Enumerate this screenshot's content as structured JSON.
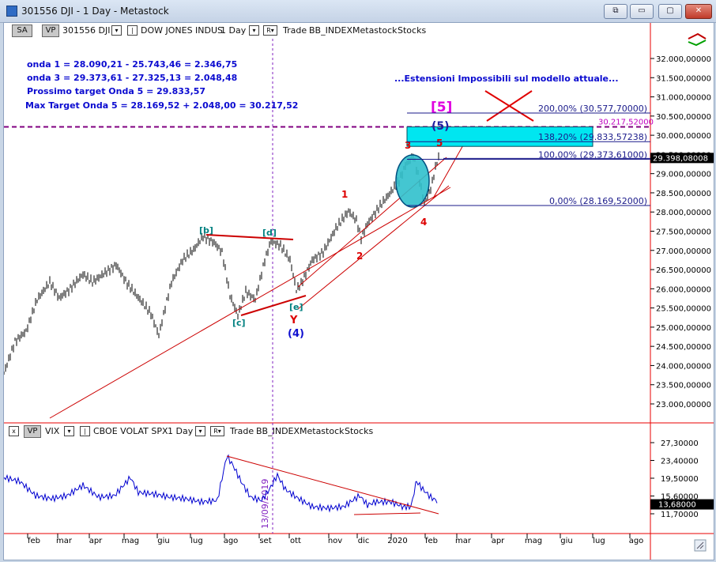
{
  "window": {
    "title": "301556 DJI - 1 Day - Metastock",
    "buttons": [
      "⧉",
      "▭",
      "▢",
      "✕"
    ]
  },
  "top_toolbar": {
    "sa": "SA",
    "vp": "VP",
    "symbol": "301556 DJI",
    "name": "DOW JONES INDUS",
    "period": "1 Day",
    "r": "R",
    "trade": "Trade",
    "bb": "BB_INDEX",
    "metastock": "Metastock",
    "stocks": "Stocks"
  },
  "bottom_toolbar": {
    "x": "x",
    "vp": "VP",
    "symbol": "VIX",
    "name": "CBOE VOLAT SPX",
    "period": "1 Day",
    "r": "R",
    "trade": "Trade",
    "bb": "BB_INDEX",
    "metastock": "Metastock",
    "stocks": "Stocks"
  },
  "notes": [
    "onda 1 = 28.090,21 - 25.743,46 = 2.346,75",
    "onda 3 = 29.373,61 - 27.325,13 = 2.048,48",
    "Prossimo target Onda 5 = 29.833,57",
    "Max Target Onda 5 = 28.169,52 + 2.048,00 = 30.217,52"
  ],
  "headline": "...Estensioni Impossibili sul modello attuale...",
  "fib_levels": [
    {
      "label": "200,00% (30.577,70000)",
      "value": 30577.7
    },
    {
      "label": "138,20% (29.833,57238)",
      "value": 29833.57
    },
    {
      "label": "100,00% (29.373,61000)",
      "value": 29373.61
    },
    {
      "label": "0,00% (28.169,52000)",
      "value": 28169.52
    }
  ],
  "max_target_label": "30.217,52000",
  "max_target_value": 30217.52,
  "current_price": "29.398,08008",
  "current_price_value": 29398.08,
  "price_axis": [
    "32.000,00000",
    "31.500,00000",
    "31.000,00000",
    "30.500,00000",
    "30.000,00000",
    "29.500,00000",
    "29.000,00000",
    "28.500,00000",
    "28.000,00000",
    "27.500,00000",
    "27.000,00000",
    "26.500,00000",
    "26.000,00000",
    "25.500,00000",
    "25.000,00000",
    "24.500,00000",
    "24.000,00000",
    "23.500,00000",
    "23.000,00000"
  ],
  "price_axis_values": [
    32000,
    31500,
    31000,
    30500,
    30000,
    29500,
    29000,
    28500,
    28000,
    27500,
    27000,
    26500,
    26000,
    25500,
    25000,
    24500,
    24000,
    23500,
    23000
  ],
  "vix_axis": [
    "27,30000",
    "23,40000",
    "19,50000",
    "15,60000",
    "11,70000"
  ],
  "vix_axis_values": [
    27.3,
    23.4,
    19.5,
    15.6,
    11.7
  ],
  "vix_current": "13,68000",
  "vix_current_value": 13.68,
  "vertical_date_label": "13/09/2019",
  "months": [
    "feb",
    "mar",
    "apr",
    "mag",
    "giu",
    "lug",
    "ago",
    "set",
    "ott",
    "nov",
    "dic",
    "2020",
    "feb",
    "mar",
    "apr",
    "mag",
    "giu",
    "lug",
    "ago"
  ],
  "wave_labels": {
    "b": "[b]",
    "c": "[c]",
    "d": "[d]",
    "e": "[e]",
    "y": "Y",
    "four": "(4)",
    "five_paren": "(5)",
    "five_box": "[5]",
    "one": "1",
    "two": "2",
    "three": "3",
    "four_small": "4",
    "five_small": "5"
  },
  "colors": {
    "note_blue": "#0b0bd0",
    "wave_red": "#dd0000",
    "wave_teal": "#008080",
    "magenta": "#e000e0",
    "dashed_purple": "#800080",
    "cyan_box": "#00e6f0"
  }
}
